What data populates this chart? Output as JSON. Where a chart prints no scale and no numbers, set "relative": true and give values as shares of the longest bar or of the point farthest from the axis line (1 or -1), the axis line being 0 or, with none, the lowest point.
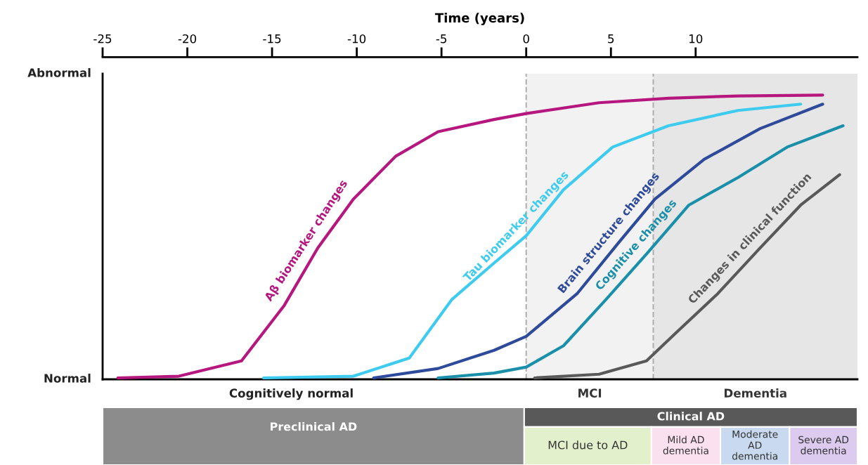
{
  "chart_data": [
    {
      "type": "line",
      "title": "Time (years)",
      "relative": true,
      "xlim": [
        -25,
        19.55
      ],
      "xticks": [
        -25,
        -20,
        -15,
        -10,
        -5,
        0,
        5,
        10
      ],
      "grid": false,
      "legend": false,
      "marker": "none",
      "line_style": "solid",
      "annotations": [
        "Normal",
        "Abnormal",
        "Cognitively normal"
      ],
      "series": [
        {
          "name": "Aβ biomarker changes",
          "color": "#b5177f",
          "x": [
            -24.1,
            -20.5,
            -16.8,
            -14.3,
            -12.3,
            -10.2,
            -7.7,
            -5.2,
            -1.9,
            0,
            4.3,
            8.4,
            12.5,
            17.5
          ],
          "values": [
            0.005,
            0.011,
            0.065,
            0.258,
            0.462,
            0.634,
            0.785,
            0.871,
            0.914,
            0.935,
            0.973,
            0.989,
            0.997,
            1
          ]
        },
        {
          "name": "Tau biomarker changes",
          "color": "#3ecbf0",
          "x": [
            -15.5,
            -10.2,
            -6.9,
            -4.4,
            -1.9,
            0,
            2.2,
            5.1,
            8.4,
            12.5,
            16.2
          ],
          "values": [
            0.005,
            0.011,
            0.075,
            0.28,
            0.409,
            0.505,
            0.667,
            0.817,
            0.892,
            0.946,
            0.968
          ]
        },
        {
          "name": "Brain structure changes",
          "color": "#2e4a9a",
          "x": [
            -9,
            -5.2,
            -1.9,
            0,
            3,
            5.5,
            7.6,
            10.5,
            13.8,
            17.5
          ],
          "values": [
            0.005,
            0.038,
            0.102,
            0.151,
            0.301,
            0.484,
            0.634,
            0.774,
            0.882,
            0.968
          ]
        },
        {
          "name": "Cognitive changes",
          "color": "#1a8faa",
          "x": [
            -5.2,
            -1.9,
            0,
            2.2,
            4.7,
            7.1,
            9.6,
            12.5,
            15.4,
            18.7
          ],
          "values": [
            0.005,
            0.022,
            0.043,
            0.118,
            0.28,
            0.441,
            0.613,
            0.71,
            0.817,
            0.892
          ]
        },
        {
          "name": "Changes in clinical function",
          "color": "#595959",
          "x": [
            0.5,
            4.3,
            7.1,
            8.8,
            11.3,
            13.8,
            16.2,
            18.5
          ],
          "values": [
            0.005,
            0.018,
            0.065,
            0.161,
            0.301,
            0.462,
            0.613,
            0.72
          ]
        }
      ],
      "bands": [
        {
          "axis": "x",
          "from": 0,
          "to": 7.5,
          "label": "MCI",
          "color": "#f2f2f2"
        },
        {
          "axis": "x",
          "from": 7.5,
          "to": 19.55,
          "label": "Dementia",
          "color": "#e6e6e6"
        }
      ],
      "ref_lines": [
        {
          "axis": "x",
          "value": 0,
          "color": "#b0b0b0",
          "line_style": "dashed"
        },
        {
          "axis": "x",
          "value": 7.5,
          "color": "#b0b0b0",
          "line_style": "dashed"
        }
      ]
    },
    {
      "type": "other",
      "annotations": [
        "Preclinical AD",
        "Clinical AD",
        "MCI due to AD",
        "Mild AD dementia",
        "Moderate AD dementia",
        "Severe AD dementia"
      ],
      "colors": [
        "#8c8c8c",
        "#595959",
        "#e2f0cb",
        "#fbe0ef",
        "#c9d9ef",
        "#dccbef"
      ]
    }
  ]
}
